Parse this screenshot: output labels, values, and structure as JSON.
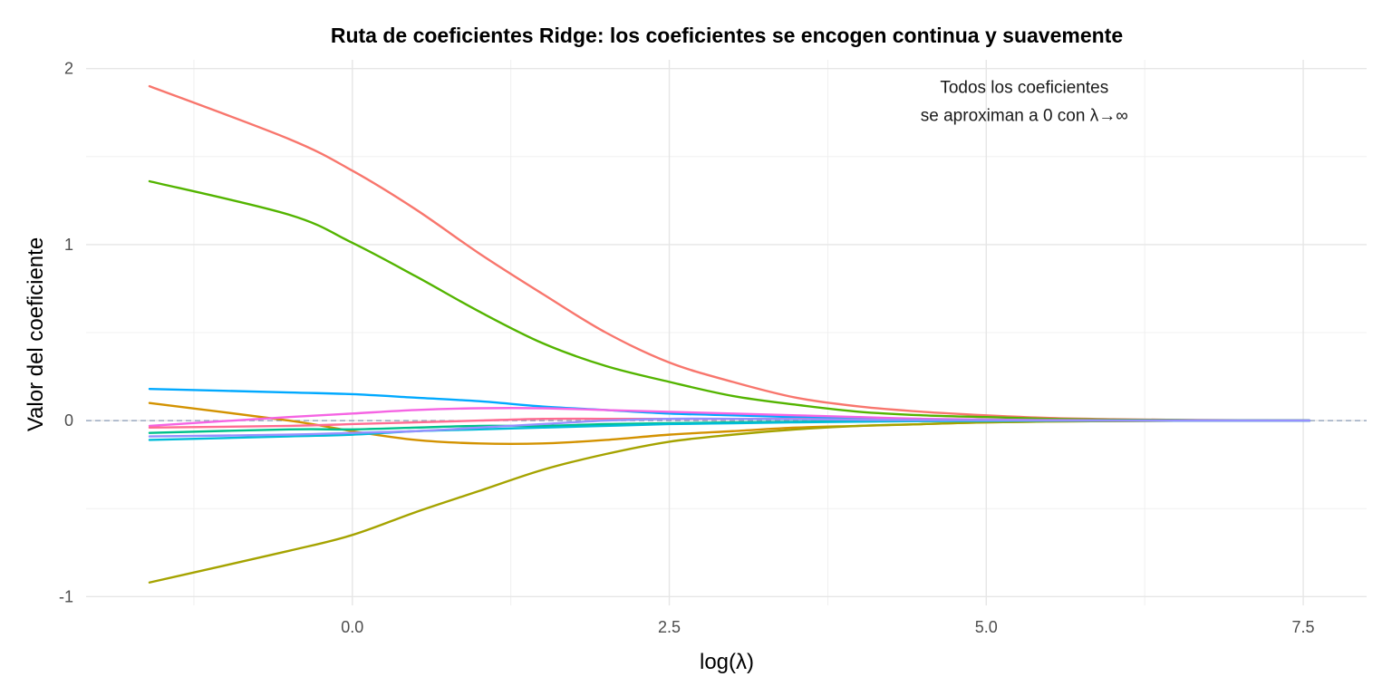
{
  "chart_data": {
    "type": "line",
    "title": "Ruta de coeficientes Ridge: los coeficientes se encogen continua y suavemente",
    "xlabel": "log(λ)",
    "ylabel": "Valor del coeficiente",
    "xlim": [
      -2.1,
      8.0
    ],
    "ylim": [
      -1.05,
      2.05
    ],
    "x_ticks": [
      0.0,
      2.5,
      5.0,
      7.5
    ],
    "x_tick_labels": [
      "0.0",
      "2.5",
      "5.0",
      "7.5"
    ],
    "y_ticks": [
      -1,
      0,
      1,
      2
    ],
    "y_tick_labels": [
      "-1",
      "0",
      "1",
      "2"
    ],
    "grid": true,
    "legend": "none",
    "reference_line": {
      "y": 0,
      "style": "dashed",
      "color": "#8a9bb8"
    },
    "annotation": {
      "lines": [
        "Todos los coeficientes",
        "se aproximan a 0 con λ→∞"
      ],
      "x": 5.3,
      "y": 1.8
    },
    "x": [
      -1.6,
      -0.5,
      0.0,
      0.5,
      1.0,
      1.5,
      2.0,
      2.5,
      3.0,
      3.5,
      4.0,
      4.5,
      5.0,
      5.5,
      6.0,
      6.5,
      7.0,
      7.55
    ],
    "series": [
      {
        "color": "#F8766D",
        "values": [
          1.9,
          1.6,
          1.42,
          1.2,
          0.95,
          0.72,
          0.5,
          0.33,
          0.22,
          0.13,
          0.08,
          0.05,
          0.03,
          0.015,
          0.008,
          0.004,
          0.002,
          0.0
        ]
      },
      {
        "color": "#53B400",
        "values": [
          1.36,
          1.17,
          1.01,
          0.82,
          0.62,
          0.44,
          0.31,
          0.22,
          0.14,
          0.09,
          0.05,
          0.03,
          0.02,
          0.01,
          0.005,
          0.003,
          0.001,
          0.0
        ]
      },
      {
        "color": "#00A9FF",
        "values": [
          0.18,
          0.16,
          0.15,
          0.13,
          0.11,
          0.08,
          0.06,
          0.04,
          0.03,
          0.02,
          0.01,
          0.005,
          0.003,
          0.002,
          0.001,
          0.0,
          0.0,
          0.0
        ]
      },
      {
        "color": "#D39200",
        "values": [
          0.1,
          0.0,
          -0.06,
          -0.11,
          -0.13,
          -0.13,
          -0.11,
          -0.08,
          -0.06,
          -0.04,
          -0.03,
          -0.02,
          -0.01,
          -0.005,
          -0.003,
          -0.001,
          0.0,
          0.0
        ]
      },
      {
        "color": "#A5A300",
        "values": [
          -0.92,
          -0.74,
          -0.65,
          -0.52,
          -0.4,
          -0.28,
          -0.19,
          -0.12,
          -0.08,
          -0.05,
          -0.03,
          -0.02,
          -0.01,
          -0.005,
          -0.003,
          -0.001,
          0.0,
          0.0
        ]
      },
      {
        "color": "#F564E3",
        "values": [
          -0.03,
          0.02,
          0.04,
          0.06,
          0.07,
          0.07,
          0.06,
          0.05,
          0.04,
          0.03,
          0.02,
          0.01,
          0.006,
          0.003,
          0.002,
          0.001,
          0.0,
          0.0
        ]
      },
      {
        "color": "#FF6C91",
        "values": [
          -0.04,
          -0.03,
          -0.02,
          -0.01,
          0.0,
          0.01,
          0.01,
          0.01,
          0.01,
          0.01,
          0.005,
          0.003,
          0.002,
          0.001,
          0.0,
          0.0,
          0.0,
          0.0
        ]
      },
      {
        "color": "#00C08B",
        "values": [
          -0.07,
          -0.05,
          -0.05,
          -0.04,
          -0.03,
          -0.03,
          -0.02,
          -0.015,
          -0.01,
          -0.007,
          -0.004,
          -0.002,
          -0.001,
          0.0,
          0.0,
          0.0,
          0.0,
          0.0
        ]
      },
      {
        "color": "#00BCD8",
        "values": [
          -0.11,
          -0.09,
          -0.08,
          -0.06,
          -0.05,
          -0.04,
          -0.03,
          -0.02,
          -0.015,
          -0.01,
          -0.006,
          -0.003,
          -0.002,
          -0.001,
          0.0,
          0.0,
          0.0,
          0.0
        ]
      },
      {
        "color": "#9590FF",
        "values": [
          -0.09,
          -0.08,
          -0.07,
          -0.06,
          -0.04,
          -0.02,
          0.0,
          0.01,
          0.01,
          0.008,
          0.005,
          0.003,
          0.002,
          0.001,
          0.0,
          0.0,
          0.0,
          0.0
        ]
      }
    ]
  }
}
